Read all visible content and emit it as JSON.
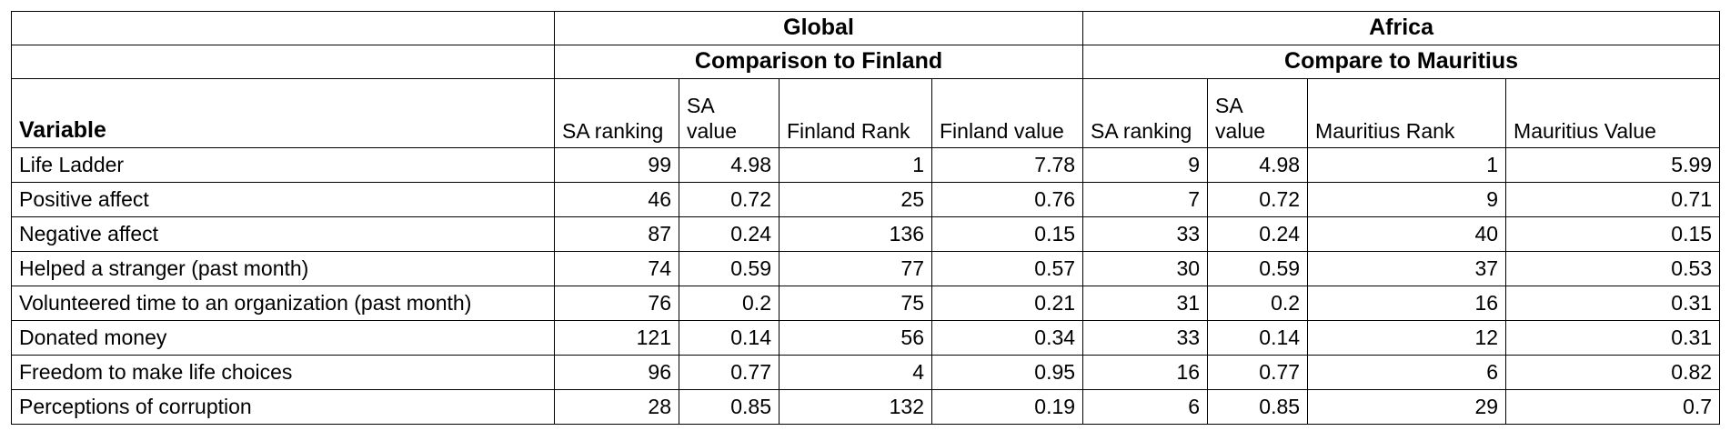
{
  "groups": {
    "global": "Global",
    "africa": "Africa"
  },
  "subgroups": {
    "global": "Comparison to Finland",
    "africa": "Compare to Mauritius"
  },
  "columns": {
    "variable": "Variable",
    "g_sa_rank": "SA ranking",
    "g_sa_value_1": "SA",
    "g_sa_value_2": "value",
    "finland_rank": "Finland Rank",
    "finland_value": "Finland value",
    "a_sa_rank": "SA ranking",
    "a_sa_value_1": "SA",
    "a_sa_value_2": "value",
    "mauritius_rank": "Mauritius Rank",
    "mauritius_value": "Mauritius Value"
  },
  "rows": [
    {
      "variable": "Life Ladder",
      "g_sa_rank": "99",
      "g_sa_value": "4.98",
      "finland_rank": "1",
      "finland_value": "7.78",
      "a_sa_rank": "9",
      "a_sa_value": "4.98",
      "mauritius_rank": "1",
      "mauritius_value": "5.99"
    },
    {
      "variable": "Positive affect",
      "g_sa_rank": "46",
      "g_sa_value": "0.72",
      "finland_rank": "25",
      "finland_value": "0.76",
      "a_sa_rank": "7",
      "a_sa_value": "0.72",
      "mauritius_rank": "9",
      "mauritius_value": "0.71"
    },
    {
      "variable": "Negative affect",
      "g_sa_rank": "87",
      "g_sa_value": "0.24",
      "finland_rank": "136",
      "finland_value": "0.15",
      "a_sa_rank": "33",
      "a_sa_value": "0.24",
      "mauritius_rank": "40",
      "mauritius_value": "0.15"
    },
    {
      "variable": "Helped a stranger (past month)",
      "g_sa_rank": "74",
      "g_sa_value": "0.59",
      "finland_rank": "77",
      "finland_value": "0.57",
      "a_sa_rank": "30",
      "a_sa_value": "0.59",
      "mauritius_rank": "37",
      "mauritius_value": "0.53"
    },
    {
      "variable": "Volunteered time to an organization (past month)",
      "g_sa_rank": "76",
      "g_sa_value": "0.2",
      "finland_rank": "75",
      "finland_value": "0.21",
      "a_sa_rank": "31",
      "a_sa_value": "0.2",
      "mauritius_rank": "16",
      "mauritius_value": "0.31"
    },
    {
      "variable": "Donated money",
      "g_sa_rank": "121",
      "g_sa_value": "0.14",
      "finland_rank": "56",
      "finland_value": "0.34",
      "a_sa_rank": "33",
      "a_sa_value": "0.14",
      "mauritius_rank": "12",
      "mauritius_value": "0.31"
    },
    {
      "variable": "Freedom to make life choices",
      "g_sa_rank": "96",
      "g_sa_value": "0.77",
      "finland_rank": "4",
      "finland_value": "0.95",
      "a_sa_rank": "16",
      "a_sa_value": "0.77",
      "mauritius_rank": "6",
      "mauritius_value": "0.82"
    },
    {
      "variable": "Perceptions of corruption",
      "g_sa_rank": "28",
      "g_sa_value": "0.85",
      "finland_rank": "132",
      "finland_value": "0.19",
      "a_sa_rank": "6",
      "a_sa_value": "0.85",
      "mauritius_rank": "29",
      "mauritius_value": "0.7"
    }
  ]
}
